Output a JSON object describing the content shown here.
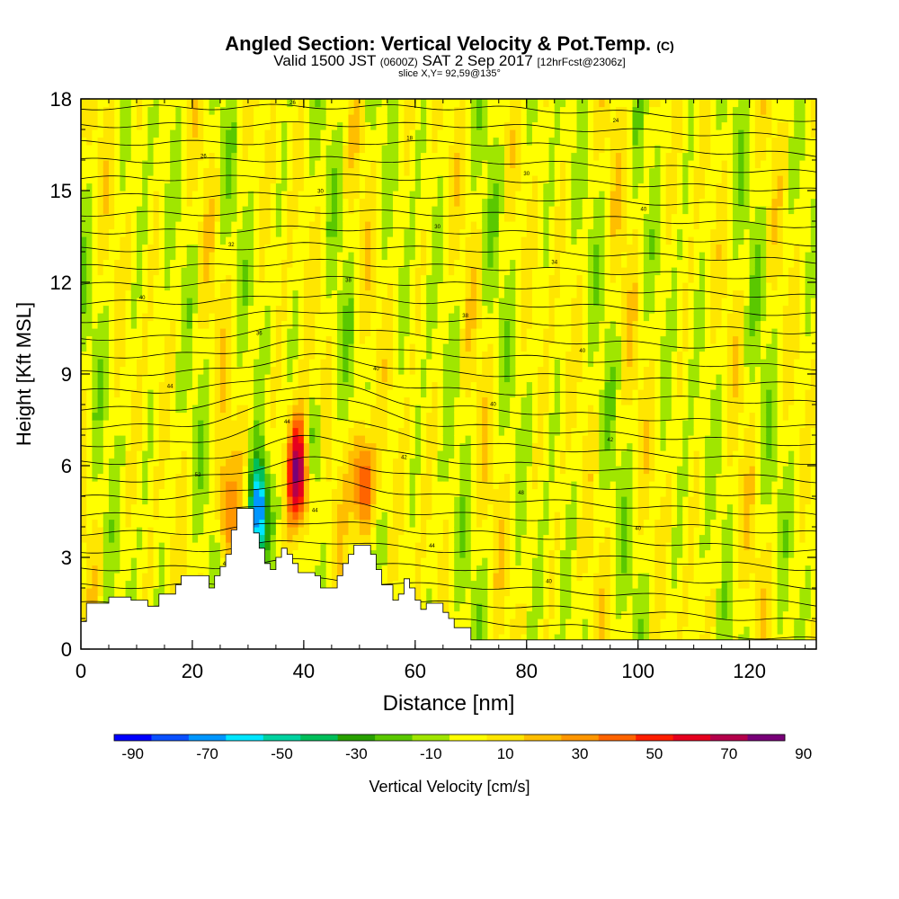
{
  "chart_data": {
    "type": "heatmap",
    "title": "Angled Section: Vertical Velocity & Pot.Temp.",
    "title_suffix": "(C)",
    "subtitle_main": "Valid 1500 JST",
    "subtitle_utc": "(0600Z)",
    "subtitle_date": "SAT 2 Sep 2017",
    "subtitle_run": "[12hrFcst@2306z]",
    "slice": "slice X,Y= 92,59@135°",
    "xlabel": "Distance [nm]",
    "ylabel": "Height [Kft MSL]",
    "xlim": [
      0,
      132
    ],
    "ylim": [
      0,
      18
    ],
    "xticks": [
      "0",
      "20",
      "40",
      "60",
      "80",
      "100",
      "120"
    ],
    "yticks": [
      "0",
      "3",
      "6",
      "9",
      "12",
      "15",
      "18"
    ],
    "colorbar": {
      "label": "Vertical Velocity [cm/s]",
      "tick_labels": [
        "-90",
        "-70",
        "-50",
        "-30",
        "-10",
        "10",
        "30",
        "50",
        "70",
        "90"
      ],
      "colors": [
        "#0000ff",
        "#0a50ff",
        "#0096ff",
        "#00e6ff",
        "#00d2a0",
        "#00be5a",
        "#28a000",
        "#5ac800",
        "#a0e600",
        "#ffff00",
        "#ffe600",
        "#ffbe00",
        "#ff9600",
        "#ff6400",
        "#ff1e00",
        "#e6001e",
        "#b4004b",
        "#780078"
      ]
    },
    "background_value_cm_s": -5,
    "updraft_cores": [
      {
        "x": 39,
        "y": 5.8,
        "max_cm_s": 80
      },
      {
        "x": 50.5,
        "y": 5.5,
        "max_cm_s": 60
      },
      {
        "x": 26,
        "y": 4.5,
        "max_cm_s": 30
      }
    ],
    "downdraft_cores": [
      {
        "x": 32,
        "y": 4.5,
        "min_cm_s": -80
      },
      {
        "x": 42,
        "y": 6.5,
        "min_cm_s": -25
      }
    ],
    "terrain": [
      [
        0,
        0.9
      ],
      [
        1,
        0.9
      ],
      [
        1,
        1.5
      ],
      [
        5,
        1.5
      ],
      [
        5,
        1.7
      ],
      [
        9,
        1.7
      ],
      [
        9,
        1.6
      ],
      [
        12,
        1.6
      ],
      [
        12,
        1.4
      ],
      [
        14,
        1.4
      ],
      [
        14,
        1.8
      ],
      [
        17,
        1.8
      ],
      [
        17,
        2.1
      ],
      [
        18,
        2.1
      ],
      [
        18,
        2.4
      ],
      [
        23,
        2.4
      ],
      [
        23,
        2.0
      ],
      [
        24,
        2.0
      ],
      [
        24,
        2.4
      ],
      [
        25,
        2.4
      ],
      [
        25,
        2.7
      ],
      [
        26,
        2.7
      ],
      [
        26,
        3.1
      ],
      [
        27,
        3.1
      ],
      [
        27,
        3.9
      ],
      [
        28,
        3.9
      ],
      [
        28,
        4.6
      ],
      [
        31,
        4.6
      ],
      [
        31,
        3.8
      ],
      [
        32,
        3.8
      ],
      [
        32,
        3.3
      ],
      [
        33,
        3.3
      ],
      [
        33,
        2.8
      ],
      [
        34,
        2.8
      ],
      [
        34,
        2.6
      ],
      [
        35,
        2.6
      ],
      [
        35,
        3.0
      ],
      [
        36,
        3.0
      ],
      [
        36,
        3.3
      ],
      [
        37,
        3.3
      ],
      [
        37,
        3.1
      ],
      [
        38,
        3.1
      ],
      [
        38,
        2.8
      ],
      [
        39,
        2.8
      ],
      [
        39,
        2.5
      ],
      [
        42,
        2.5
      ],
      [
        42,
        2.4
      ],
      [
        43,
        2.4
      ],
      [
        43,
        2.0
      ],
      [
        46,
        2.0
      ],
      [
        46,
        2.4
      ],
      [
        47,
        2.4
      ],
      [
        47,
        2.8
      ],
      [
        48,
        2.8
      ],
      [
        48,
        3.1
      ],
      [
        49,
        3.1
      ],
      [
        49,
        3.4
      ],
      [
        52,
        3.4
      ],
      [
        52,
        3.1
      ],
      [
        53,
        3.1
      ],
      [
        53,
        2.6
      ],
      [
        54,
        2.6
      ],
      [
        54,
        2.1
      ],
      [
        56,
        2.1
      ],
      [
        56,
        1.6
      ],
      [
        57,
        1.6
      ],
      [
        57,
        1.8
      ],
      [
        58,
        1.8
      ],
      [
        58,
        2.3
      ],
      [
        59,
        2.3
      ],
      [
        59,
        2.0
      ],
      [
        60,
        2.0
      ],
      [
        60,
        1.6
      ],
      [
        61,
        1.6
      ],
      [
        61,
        1.3
      ],
      [
        62,
        1.3
      ],
      [
        62,
        1.5
      ],
      [
        65,
        1.5
      ],
      [
        65,
        1.2
      ],
      [
        66,
        1.2
      ],
      [
        66,
        1.0
      ],
      [
        67,
        1.0
      ],
      [
        67,
        0.7
      ],
      [
        70,
        0.7
      ],
      [
        70,
        0.3
      ],
      [
        132,
        0.3
      ],
      [
        132,
        0
      ]
    ],
    "theta_contour_labels": [
      "40",
      "38",
      "40",
      "46",
      "44",
      "40",
      "44",
      "48",
      "52",
      "42",
      "42",
      "44",
      "40",
      "44",
      "40",
      "40",
      "36",
      "38",
      "40",
      "38",
      "34",
      "32",
      "30",
      "40",
      "30",
      "30",
      "26",
      "18",
      "24",
      "26",
      "28",
      "24"
    ]
  }
}
